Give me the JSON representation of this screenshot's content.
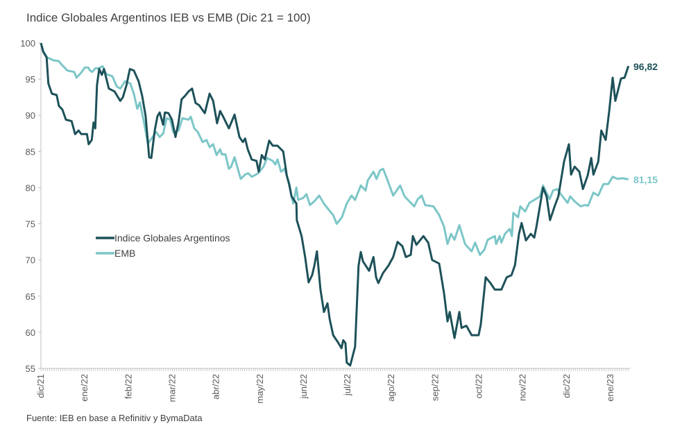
{
  "chart_data": {
    "type": "line",
    "title": "Indice Globales Argentinos IEB vs EMB (Dic 21 = 100)",
    "source": "Fuente: IEB en base a Refinitiv y BymaData",
    "xlabel": "",
    "ylabel": "",
    "x_unit": "months since dic/21",
    "x_tick_labels": [
      "dic/21",
      "ene/22",
      "feb/22",
      "mar/22",
      "abr/22",
      "may/22",
      "jun/22",
      "jul/22",
      "ago/22",
      "sep/22",
      "oct/22",
      "nov/22",
      "dic/22",
      "ene/23"
    ],
    "ylim": [
      55,
      100
    ],
    "y_ticks": [
      55,
      60,
      65,
      70,
      75,
      80,
      85,
      90,
      95,
      100
    ],
    "grid": false,
    "legend_position": "center-left",
    "colors": {
      "iga": "#1d5159",
      "emb": "#7cc6c8"
    },
    "series": [
      {
        "name": "Indice Globales Argentinos",
        "key": "iga",
        "end_label": "96,82",
        "points": [
          [
            0,
            100
          ],
          [
            0.05,
            98.8
          ],
          [
            0.13,
            98
          ],
          [
            0.17,
            94.4
          ],
          [
            0.25,
            93
          ],
          [
            0.36,
            92.8
          ],
          [
            0.41,
            91.3
          ],
          [
            0.49,
            90.8
          ],
          [
            0.57,
            89.4
          ],
          [
            0.7,
            89.2
          ],
          [
            0.78,
            87.4
          ],
          [
            0.86,
            87.9
          ],
          [
            0.92,
            87.4
          ],
          [
            1.05,
            87.4
          ],
          [
            1.09,
            86
          ],
          [
            1.16,
            86.6
          ],
          [
            1.2,
            89
          ],
          [
            1.24,
            88.2
          ],
          [
            1.28,
            94.2
          ],
          [
            1.33,
            96.4
          ],
          [
            1.39,
            95.6
          ],
          [
            1.44,
            96.4
          ],
          [
            1.55,
            93.7
          ],
          [
            1.68,
            93.3
          ],
          [
            1.81,
            92
          ],
          [
            1.87,
            92.5
          ],
          [
            1.95,
            94.1
          ],
          [
            2.03,
            96.4
          ],
          [
            2.12,
            96.2
          ],
          [
            2.23,
            94.7
          ],
          [
            2.31,
            92.7
          ],
          [
            2.39,
            89.9
          ],
          [
            2.47,
            84.2
          ],
          [
            2.52,
            84.1
          ],
          [
            2.6,
            88
          ],
          [
            2.66,
            89.9
          ],
          [
            2.71,
            90.4
          ],
          [
            2.79,
            88.7
          ],
          [
            2.83,
            90.4
          ],
          [
            2.91,
            90.3
          ],
          [
            2.99,
            89.4
          ],
          [
            3.07,
            87
          ],
          [
            3.14,
            89
          ],
          [
            3.21,
            92.2
          ],
          [
            3.29,
            92.7
          ],
          [
            3.37,
            93.3
          ],
          [
            3.45,
            93.7
          ],
          [
            3.53,
            91.7
          ],
          [
            3.61,
            91.4
          ],
          [
            3.74,
            90.3
          ],
          [
            3.85,
            93
          ],
          [
            3.93,
            92
          ],
          [
            4.02,
            88.9
          ],
          [
            4.09,
            90.6
          ],
          [
            4.16,
            89.8
          ],
          [
            4.29,
            88.2
          ],
          [
            4.42,
            90.1
          ],
          [
            4.53,
            87
          ],
          [
            4.61,
            86.3
          ],
          [
            4.66,
            86.8
          ],
          [
            4.72,
            85.3
          ],
          [
            4.81,
            83.9
          ],
          [
            4.92,
            83.7
          ],
          [
            4.97,
            82.2
          ],
          [
            5.04,
            84.5
          ],
          [
            5.11,
            83.9
          ],
          [
            5.21,
            86.5
          ],
          [
            5.29,
            85.8
          ],
          [
            5.4,
            85.8
          ],
          [
            5.53,
            85
          ],
          [
            5.61,
            81.7
          ],
          [
            5.67,
            80.3
          ],
          [
            5.72,
            78.8
          ],
          [
            5.83,
            77.8
          ],
          [
            5.84,
            75.5
          ],
          [
            5.95,
            73.3
          ],
          [
            6.03,
            70.4
          ],
          [
            6.11,
            66.9
          ],
          [
            6.19,
            67.9
          ],
          [
            6.24,
            69.2
          ],
          [
            6.3,
            71.2
          ],
          [
            6.38,
            65.9
          ],
          [
            6.46,
            62.8
          ],
          [
            6.54,
            64
          ],
          [
            6.59,
            61.8
          ],
          [
            6.67,
            59.6
          ],
          [
            6.78,
            58.6
          ],
          [
            6.86,
            57.8
          ],
          [
            6.9,
            58.9
          ],
          [
            6.95,
            58.5
          ],
          [
            6.98,
            55.8
          ],
          [
            7.06,
            55.4
          ],
          [
            7.17,
            58
          ],
          [
            7.25,
            69.2
          ],
          [
            7.3,
            71.1
          ],
          [
            7.35,
            69.8
          ],
          [
            7.49,
            68.5
          ],
          [
            7.59,
            70.4
          ],
          [
            7.65,
            67.6
          ],
          [
            7.7,
            66.8
          ],
          [
            7.81,
            68.2
          ],
          [
            7.93,
            69.2
          ],
          [
            8.04,
            70.4
          ],
          [
            8.14,
            72.5
          ],
          [
            8.25,
            71.9
          ],
          [
            8.33,
            70.4
          ],
          [
            8.44,
            70.7
          ],
          [
            8.49,
            73.3
          ],
          [
            8.57,
            72.1
          ],
          [
            8.73,
            73.3
          ],
          [
            8.84,
            72.4
          ],
          [
            8.93,
            70
          ],
          [
            9.09,
            69.5
          ],
          [
            9.2,
            65.4
          ],
          [
            9.28,
            61.5
          ],
          [
            9.33,
            62.8
          ],
          [
            9.44,
            59.2
          ],
          [
            9.55,
            62.8
          ],
          [
            9.6,
            60.6
          ],
          [
            9.71,
            60.9
          ],
          [
            9.83,
            59.6
          ],
          [
            9.99,
            59.6
          ],
          [
            10.04,
            61.1
          ],
          [
            10.15,
            67.6
          ],
          [
            10.26,
            66.8
          ],
          [
            10.36,
            65.9
          ],
          [
            10.51,
            65.9
          ],
          [
            10.63,
            67.6
          ],
          [
            10.74,
            67.9
          ],
          [
            10.82,
            69.3
          ],
          [
            10.91,
            73.6
          ],
          [
            10.97,
            75.1
          ],
          [
            11.07,
            72.7
          ],
          [
            11.18,
            73.6
          ],
          [
            11.26,
            73.1
          ],
          [
            11.31,
            74.6
          ],
          [
            11.46,
            80
          ],
          [
            11.54,
            78.8
          ],
          [
            11.62,
            75.5
          ],
          [
            11.73,
            77.5
          ],
          [
            11.81,
            78.8
          ],
          [
            11.94,
            83.6
          ],
          [
            12.05,
            86
          ],
          [
            12.1,
            81.8
          ],
          [
            12.18,
            82.9
          ],
          [
            12.29,
            82.2
          ],
          [
            12.37,
            79.8
          ],
          [
            12.48,
            81.7
          ],
          [
            12.56,
            84.1
          ],
          [
            12.61,
            81.8
          ],
          [
            12.72,
            83.6
          ],
          [
            12.79,
            87.9
          ],
          [
            12.89,
            86.6
          ],
          [
            12.97,
            90.6
          ],
          [
            13.05,
            95.2
          ],
          [
            13.11,
            92
          ],
          [
            13.24,
            95.1
          ],
          [
            13.32,
            95.2
          ],
          [
            13.41,
            96.82
          ]
        ]
      },
      {
        "name": "EMB",
        "key": "emb",
        "end_label": "81,15",
        "points": [
          [
            0,
            100
          ],
          [
            0.06,
            98.8
          ],
          [
            0.14,
            98
          ],
          [
            0.29,
            97.6
          ],
          [
            0.41,
            97.5
          ],
          [
            0.46,
            97.1
          ],
          [
            0.54,
            96.6
          ],
          [
            0.6,
            96.2
          ],
          [
            0.76,
            96
          ],
          [
            0.81,
            95.2
          ],
          [
            0.92,
            95.9
          ],
          [
            1.0,
            96.6
          ],
          [
            1.08,
            96.6
          ],
          [
            1.12,
            96.2
          ],
          [
            1.17,
            96
          ],
          [
            1.24,
            96.5
          ],
          [
            1.31,
            96.5
          ],
          [
            1.41,
            96.8
          ],
          [
            1.49,
            95.7
          ],
          [
            1.63,
            95.4
          ],
          [
            1.73,
            94
          ],
          [
            1.81,
            93.7
          ],
          [
            1.92,
            94.7
          ],
          [
            2.04,
            94.4
          ],
          [
            2.12,
            93
          ],
          [
            2.2,
            90.9
          ],
          [
            2.26,
            91.8
          ],
          [
            2.36,
            88.8
          ],
          [
            2.44,
            86.1
          ],
          [
            2.55,
            87
          ],
          [
            2.63,
            87.7
          ],
          [
            2.71,
            87
          ],
          [
            2.79,
            87.5
          ],
          [
            2.87,
            89.6
          ],
          [
            2.95,
            89.4
          ],
          [
            3.02,
            87.7
          ],
          [
            3.14,
            87.9
          ],
          [
            3.23,
            89.6
          ],
          [
            3.37,
            89.4
          ],
          [
            3.42,
            89.8
          ],
          [
            3.5,
            88.2
          ],
          [
            3.58,
            87.7
          ],
          [
            3.69,
            86.3
          ],
          [
            3.78,
            86.6
          ],
          [
            3.85,
            85.6
          ],
          [
            3.93,
            86
          ],
          [
            4.01,
            84.5
          ],
          [
            4.09,
            85.3
          ],
          [
            4.13,
            84.6
          ],
          [
            4.21,
            84.6
          ],
          [
            4.29,
            82.6
          ],
          [
            4.34,
            82.9
          ],
          [
            4.42,
            84.2
          ],
          [
            4.56,
            81.2
          ],
          [
            4.66,
            81.8
          ],
          [
            4.73,
            82
          ],
          [
            4.81,
            81.5
          ],
          [
            4.88,
            81.7
          ],
          [
            4.96,
            82
          ],
          [
            5.08,
            82.9
          ],
          [
            5.16,
            84.1
          ],
          [
            5.29,
            83.7
          ],
          [
            5.35,
            83.2
          ],
          [
            5.4,
            83.9
          ],
          [
            5.48,
            82.2
          ],
          [
            5.56,
            82.6
          ],
          [
            5.67,
            80.5
          ],
          [
            5.72,
            78.8
          ],
          [
            5.76,
            77.8
          ],
          [
            5.83,
            80
          ],
          [
            5.87,
            78.3
          ],
          [
            5.99,
            78.6
          ],
          [
            6.06,
            79.1
          ],
          [
            6.14,
            77.6
          ],
          [
            6.24,
            78.1
          ],
          [
            6.35,
            78.9
          ],
          [
            6.46,
            77.8
          ],
          [
            6.56,
            77
          ],
          [
            6.67,
            76.2
          ],
          [
            6.75,
            75
          ],
          [
            6.87,
            75.9
          ],
          [
            6.98,
            77.8
          ],
          [
            7.09,
            78.9
          ],
          [
            7.17,
            78.3
          ],
          [
            7.3,
            80.3
          ],
          [
            7.41,
            79.6
          ],
          [
            7.46,
            81
          ],
          [
            7.59,
            82.2
          ],
          [
            7.66,
            81.2
          ],
          [
            7.74,
            82.4
          ],
          [
            7.81,
            82.6
          ],
          [
            7.93,
            80.7
          ],
          [
            8.04,
            78.9
          ],
          [
            8.2,
            80.3
          ],
          [
            8.3,
            78.8
          ],
          [
            8.52,
            77.4
          ],
          [
            8.6,
            78.4
          ],
          [
            8.69,
            78.9
          ],
          [
            8.77,
            77.6
          ],
          [
            8.96,
            77.4
          ],
          [
            9.09,
            76.2
          ],
          [
            9.2,
            74.6
          ],
          [
            9.28,
            72.2
          ],
          [
            9.36,
            73.6
          ],
          [
            9.44,
            72.8
          ],
          [
            9.55,
            74.8
          ],
          [
            9.68,
            72.2
          ],
          [
            9.83,
            71.2
          ],
          [
            9.91,
            72.4
          ],
          [
            10.02,
            70.7
          ],
          [
            10.12,
            71.4
          ],
          [
            10.2,
            72.8
          ],
          [
            10.36,
            73.3
          ],
          [
            10.39,
            72.2
          ],
          [
            10.47,
            73.3
          ],
          [
            10.51,
            72.4
          ],
          [
            10.59,
            73.6
          ],
          [
            10.7,
            74.3
          ],
          [
            10.75,
            73.3
          ],
          [
            10.78,
            76.5
          ],
          [
            10.89,
            75.9
          ],
          [
            10.94,
            77.4
          ],
          [
            11.05,
            76.7
          ],
          [
            11.15,
            77.9
          ],
          [
            11.26,
            78.3
          ],
          [
            11.39,
            78.8
          ],
          [
            11.46,
            80.3
          ],
          [
            11.61,
            78.4
          ],
          [
            11.69,
            79.6
          ],
          [
            11.78,
            79.8
          ],
          [
            11.89,
            78.9
          ],
          [
            12.02,
            77.9
          ],
          [
            12.08,
            78.8
          ],
          [
            12.18,
            78.1
          ],
          [
            12.32,
            77.4
          ],
          [
            12.41,
            77.6
          ],
          [
            12.49,
            77.5
          ],
          [
            12.61,
            79.3
          ],
          [
            12.72,
            78.9
          ],
          [
            12.84,
            80.5
          ],
          [
            12.95,
            80.5
          ],
          [
            13.05,
            81.5
          ],
          [
            13.16,
            81.2
          ],
          [
            13.27,
            81.3
          ],
          [
            13.41,
            81.15
          ]
        ]
      }
    ]
  }
}
